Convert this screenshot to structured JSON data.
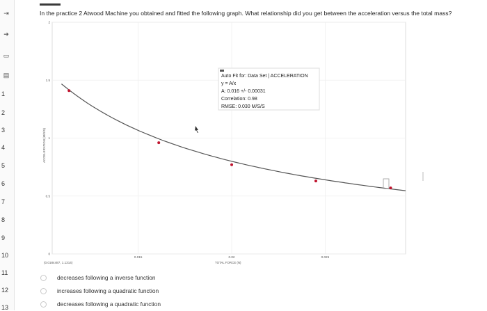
{
  "sidebar": {
    "icons": [
      "collapse-icon",
      "arrow-icon",
      "flag-icon",
      "list-icon"
    ],
    "numbers": [
      "1",
      "2",
      "3",
      "4",
      "5",
      "6",
      "7",
      "8",
      "9",
      "10",
      "11",
      "12",
      "13"
    ]
  },
  "question": {
    "text": "In the practice 2 Atwood Machine you obtained and fitted the following graph. What relationship did you get between the acceleration versus the total mass?"
  },
  "chart_data": {
    "type": "scatter",
    "title": "",
    "xlabel": "TOTAL FORCE (N)",
    "ylabel": "ACCELERATION (M/S/S)",
    "xlim": [
      0.0104,
      0.0293
    ],
    "ylim": [
      0,
      2
    ],
    "xticks": [
      {
        "value": 0.015,
        "label": "0.015"
      },
      {
        "value": 0.02,
        "label": "0.02"
      },
      {
        "value": 0.025,
        "label": "0.025"
      }
    ],
    "yticks": [
      {
        "value": 2,
        "label": "2"
      },
      {
        "value": 1.5,
        "label": "1.5"
      },
      {
        "value": 1,
        "label": "1"
      },
      {
        "value": 0.5,
        "label": "0.5"
      },
      {
        "value": 0,
        "label": "0"
      }
    ],
    "corner_readout": "(0.0184487, 1.1314)",
    "points": [
      {
        "x": 0.0113,
        "y": 1.41
      },
      {
        "x": 0.0161,
        "y": 0.96
      },
      {
        "x": 0.02,
        "y": 0.77
      },
      {
        "x": 0.0245,
        "y": 0.63
      },
      {
        "x": 0.0285,
        "y": 0.57
      }
    ],
    "fit": {
      "A": 0.016,
      "lines": [
        "Auto Fit for: Data Set | ACCELERATION",
        "y = A/x",
        "A: 0.016 +/- 0.00031",
        "Correlation: 0.98",
        "RMSE: 0.030 M/S/S"
      ]
    },
    "series_color": "#c0152f",
    "fit_color": "#555555",
    "grid": true
  },
  "options": [
    {
      "label": "decreases following a inverse function"
    },
    {
      "label": "increases following a quadratic function"
    },
    {
      "label": "decreases following a quadratic function"
    }
  ]
}
